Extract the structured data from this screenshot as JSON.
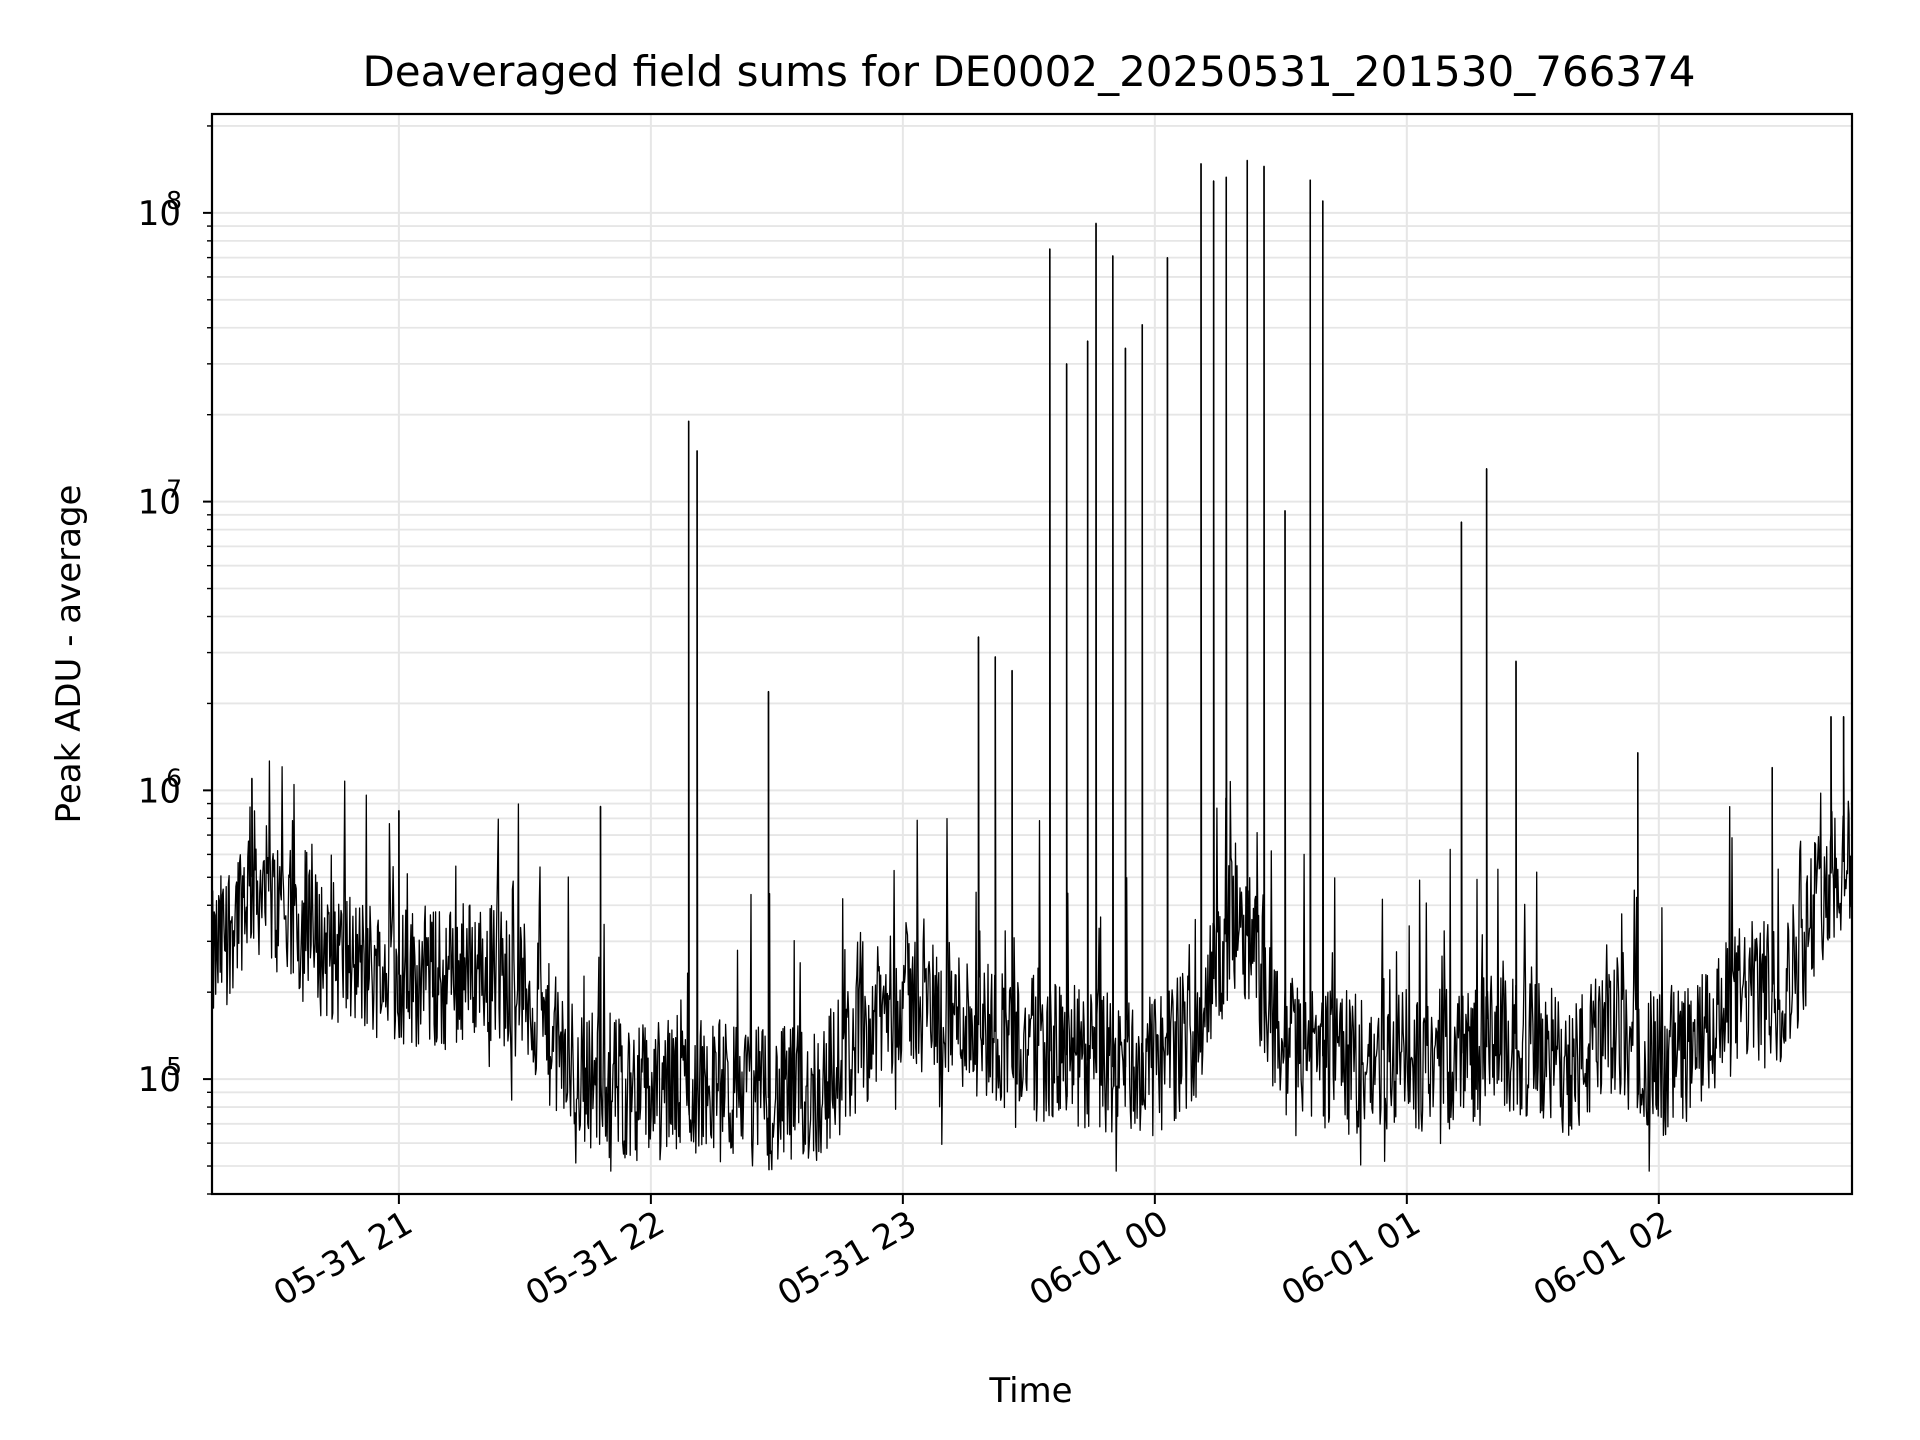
{
  "chart_data": {
    "type": "line",
    "title": "Deaveraged field sums for DE0002_20250531_201530_766374",
    "xlabel": "Time",
    "ylabel": "Peak ADU - average",
    "yscale": "log",
    "grid": true,
    "xlim": [
      "2025-05-31 20:15:30",
      "2025-06-01 02:46:00"
    ],
    "ylim": [
      40000,
      220000000
    ],
    "x_ticks": [
      "05-31 21",
      "05-31 22",
      "05-31 23",
      "06-01 00",
      "06-01 01",
      "06-01 02"
    ],
    "y_ticks": [
      "10^5",
      "10^6",
      "10^7",
      "10^8"
    ],
    "line_color": "#000000",
    "series": [
      {
        "x": [
          "2025-05-31 20:15:30",
          "2025-05-31 20:20",
          "2025-05-31 20:25",
          "2025-05-31 20:30",
          "2025-05-31 20:40",
          "2025-05-31 20:50",
          "2025-05-31 21:00",
          "2025-05-31 21:10",
          "2025-05-31 21:20",
          "2025-05-31 21:30",
          "2025-05-31 21:40",
          "2025-05-31 21:50",
          "2025-05-31 22:00",
          "2025-05-31 22:10",
          "2025-05-31 22:20",
          "2025-05-31 22:30",
          "2025-05-31 22:40",
          "2025-05-31 22:50",
          "2025-05-31 23:00",
          "2025-05-31 23:10",
          "2025-05-31 23:20",
          "2025-05-31 23:30",
          "2025-05-31 23:40",
          "2025-05-31 23:50",
          "2025-06-01 00:00",
          "2025-06-01 00:10",
          "2025-06-01 00:20",
          "2025-06-01 00:30",
          "2025-06-01 00:40",
          "2025-06-01 00:50",
          "2025-06-01 01:00",
          "2025-06-01 01:10",
          "2025-06-01 01:20",
          "2025-06-01 01:30",
          "2025-06-01 01:40",
          "2025-06-01 01:50",
          "2025-06-01 02:00",
          "2025-06-01 02:10",
          "2025-06-01 02:20",
          "2025-06-01 02:30",
          "2025-06-01 02:40",
          "2025-06-01 02:46"
        ],
        "y": [
          250000,
          350000,
          500000,
          400000,
          300000,
          250000,
          230000,
          220000,
          250000,
          200000,
          110000,
          95000,
          90000,
          95000,
          90000,
          85000,
          90000,
          140000,
          200000,
          170000,
          150000,
          130000,
          120000,
          110000,
          110000,
          150000,
          400000,
          130000,
          120000,
          110000,
          115000,
          120000,
          130000,
          125000,
          110000,
          150000,
          110000,
          130000,
          200000,
          200000,
          500000,
          600000
        ]
      }
    ],
    "spikes": [
      {
        "x": "2025-05-31 20:25",
        "y": 1100000
      },
      {
        "x": "2025-05-31 21:00",
        "y": 850000
      },
      {
        "x": "2025-05-31 21:48",
        "y": 880000
      },
      {
        "x": "2025-05-31 22:09",
        "y": 19000000
      },
      {
        "x": "2025-05-31 22:11",
        "y": 15000000
      },
      {
        "x": "2025-05-31 22:28",
        "y": 2200000
      },
      {
        "x": "2025-05-31 23:18",
        "y": 3400000
      },
      {
        "x": "2025-05-31 23:22",
        "y": 2900000
      },
      {
        "x": "2025-05-31 23:26",
        "y": 2600000
      },
      {
        "x": "2025-05-31 23:35",
        "y": 75000000
      },
      {
        "x": "2025-05-31 23:39",
        "y": 30000000
      },
      {
        "x": "2025-05-31 23:44",
        "y": 36000000
      },
      {
        "x": "2025-05-31 23:46",
        "y": 92000000
      },
      {
        "x": "2025-05-31 23:50",
        "y": 71000000
      },
      {
        "x": "2025-05-31 23:53",
        "y": 34000000
      },
      {
        "x": "2025-05-31 23:57",
        "y": 41000000
      },
      {
        "x": "2025-06-01 00:03",
        "y": 70000000
      },
      {
        "x": "2025-06-01 00:11",
        "y": 148000000
      },
      {
        "x": "2025-06-01 00:14",
        "y": 129000000
      },
      {
        "x": "2025-06-01 00:17",
        "y": 133000000
      },
      {
        "x": "2025-06-01 00:22",
        "y": 152000000
      },
      {
        "x": "2025-06-01 00:26",
        "y": 145000000
      },
      {
        "x": "2025-06-01 00:31",
        "y": 9300000
      },
      {
        "x": "2025-06-01 00:37",
        "y": 130000000
      },
      {
        "x": "2025-06-01 00:40",
        "y": 110000000
      },
      {
        "x": "2025-06-01 01:13",
        "y": 8500000
      },
      {
        "x": "2025-06-01 01:19",
        "y": 13000000
      },
      {
        "x": "2025-06-01 01:26",
        "y": 2800000
      },
      {
        "x": "2025-06-01 01:55",
        "y": 1350000
      },
      {
        "x": "2025-06-01 02:27",
        "y": 1200000
      },
      {
        "x": "2025-06-01 02:41",
        "y": 1800000
      },
      {
        "x": "2025-06-01 02:44",
        "y": 1800000
      }
    ]
  }
}
